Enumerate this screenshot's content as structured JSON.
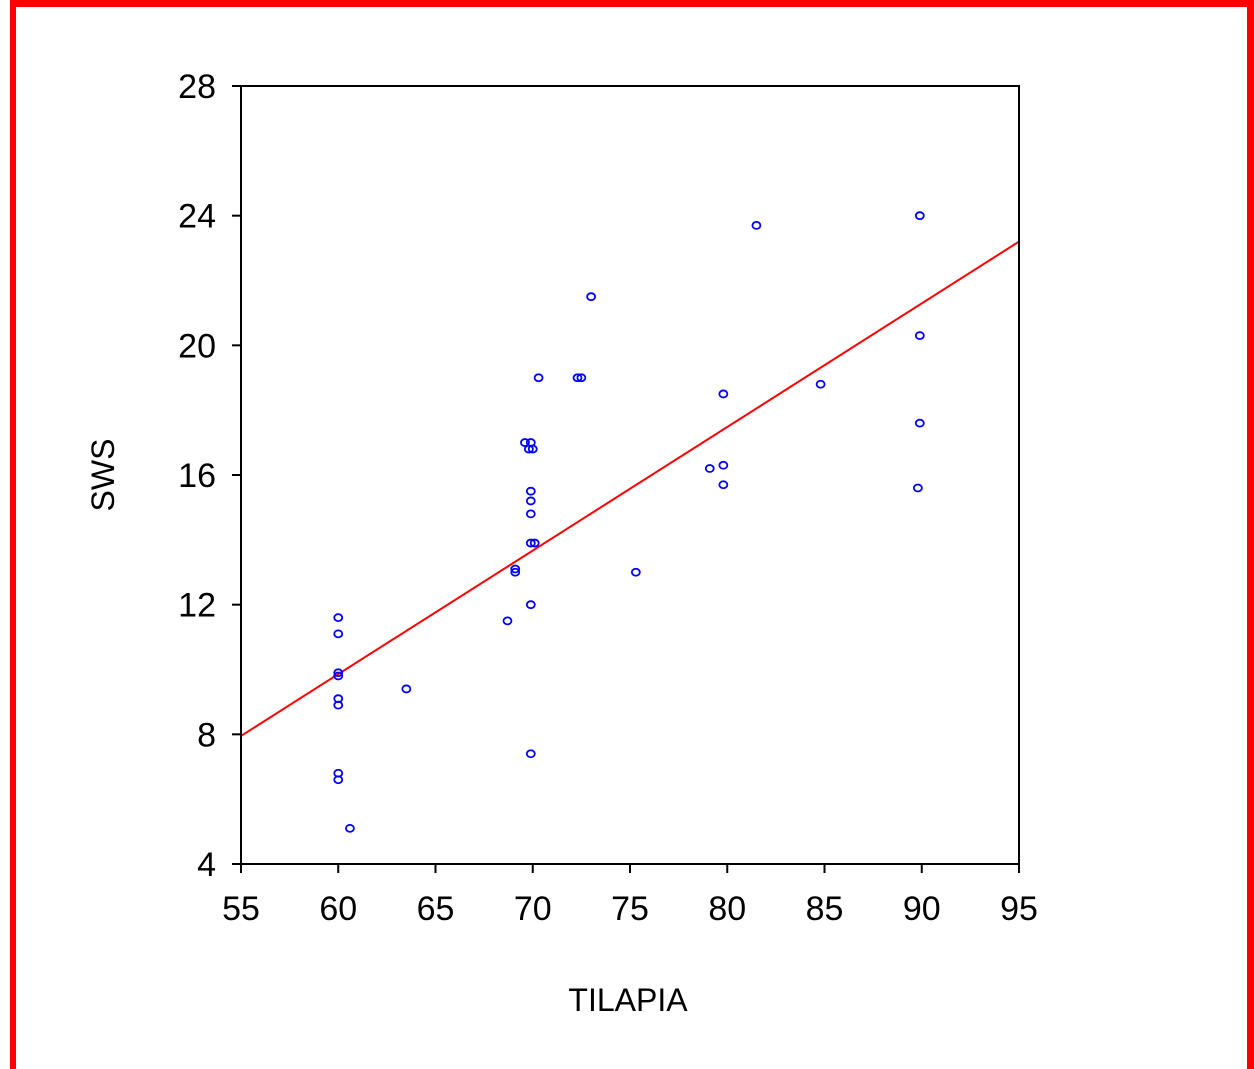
{
  "chart_data": {
    "type": "scatter",
    "title": "",
    "xlabel": "TILAPIA",
    "ylabel": "SWS",
    "xlim": [
      55,
      95
    ],
    "ylim": [
      4,
      28
    ],
    "xticks": [
      55,
      60,
      65,
      70,
      75,
      80,
      85,
      90,
      95
    ],
    "yticks": [
      4,
      8,
      12,
      16,
      20,
      24,
      28
    ],
    "grid": false,
    "legend": "none",
    "colors": {
      "points": "#0000ff",
      "fit_line": "#ff0000",
      "frame": "#ff0000",
      "axes": "#000000"
    },
    "series": [
      {
        "points": [
          [
            60,
            11.6
          ],
          [
            60,
            11.1
          ],
          [
            60,
            9.9
          ],
          [
            60,
            9.8
          ],
          [
            60,
            9.1
          ],
          [
            60,
            8.9
          ],
          [
            60,
            6.8
          ],
          [
            60,
            6.6
          ],
          [
            60.6,
            5.1
          ],
          [
            63.5,
            9.4
          ],
          [
            68.7,
            11.5
          ],
          [
            69.1,
            13.0
          ],
          [
            69.1,
            13.1
          ],
          [
            69.6,
            17.0
          ],
          [
            69.8,
            16.8
          ],
          [
            69.9,
            17.0
          ],
          [
            70,
            16.8
          ],
          [
            69.9,
            15.5
          ],
          [
            69.9,
            15.2
          ],
          [
            69.9,
            14.8
          ],
          [
            69.9,
            13.9
          ],
          [
            70.1,
            13.9
          ],
          [
            69.9,
            12.0
          ],
          [
            69.9,
            7.4
          ],
          [
            70.3,
            19.0
          ],
          [
            72.3,
            19.0
          ],
          [
            72.5,
            19.0
          ],
          [
            73.0,
            21.5
          ],
          [
            75.3,
            13.0
          ],
          [
            79.1,
            16.2
          ],
          [
            79.8,
            16.3
          ],
          [
            79.8,
            15.7
          ],
          [
            79.8,
            18.5
          ],
          [
            81.5,
            23.7
          ],
          [
            84.8,
            18.8
          ],
          [
            89.8,
            15.6
          ],
          [
            89.9,
            17.6
          ],
          [
            89.9,
            20.3
          ],
          [
            89.9,
            24.0
          ]
        ]
      }
    ],
    "fit_line": {
      "x": [
        55,
        95
      ],
      "y": [
        7.95,
        23.2
      ]
    }
  }
}
